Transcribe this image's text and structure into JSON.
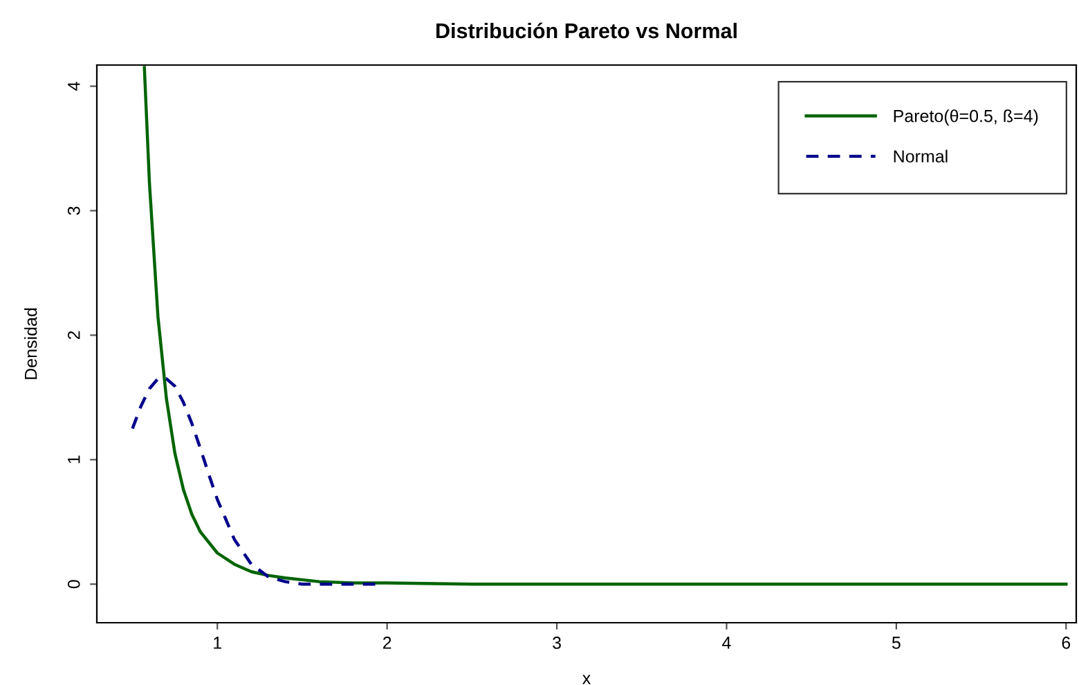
{
  "chart_data": {
    "type": "line",
    "title": "Distribución Pareto vs Normal",
    "xlabel": "x",
    "ylabel": "Densidad",
    "xlim": [
      0.29,
      6.06
    ],
    "xticks": [
      1,
      2,
      3,
      4,
      5,
      6
    ],
    "ylim": [
      -0.31,
      4.17
    ],
    "yticks": [
      0,
      1,
      2,
      3,
      4
    ],
    "grid": false,
    "legend": "top right",
    "series": [
      {
        "name": "Pareto(θ=0.5, ß=4)",
        "color": "#006400",
        "line_style": "solid",
        "x": [
          0.57,
          0.6,
          0.65,
          0.7,
          0.75,
          0.8,
          0.85,
          0.9,
          1.0,
          1.1,
          1.2,
          1.3,
          1.4,
          1.6,
          1.8,
          2.0,
          2.5,
          3.0,
          4.0,
          5.0,
          6.0
        ],
        "values": [
          4.15,
          3.22,
          2.15,
          1.49,
          1.05,
          0.76,
          0.56,
          0.42,
          0.25,
          0.16,
          0.1,
          0.07,
          0.05,
          0.02,
          0.01,
          0.01,
          0.0,
          0.0,
          0.0,
          0.0,
          0.0
        ]
      },
      {
        "name": "Normal",
        "color": "#00008b",
        "line_style": "dashed",
        "x": [
          0.5,
          0.55,
          0.6,
          0.65,
          0.7,
          0.75,
          0.8,
          0.85,
          0.9,
          0.95,
          1.0,
          1.1,
          1.2,
          1.3,
          1.4,
          1.5,
          1.6,
          1.8,
          1.95
        ],
        "values": [
          1.25,
          1.43,
          1.57,
          1.65,
          1.65,
          1.59,
          1.46,
          1.29,
          1.09,
          0.88,
          0.68,
          0.36,
          0.16,
          0.06,
          0.02,
          0.0,
          0.0,
          0.0,
          0.0
        ]
      }
    ]
  }
}
